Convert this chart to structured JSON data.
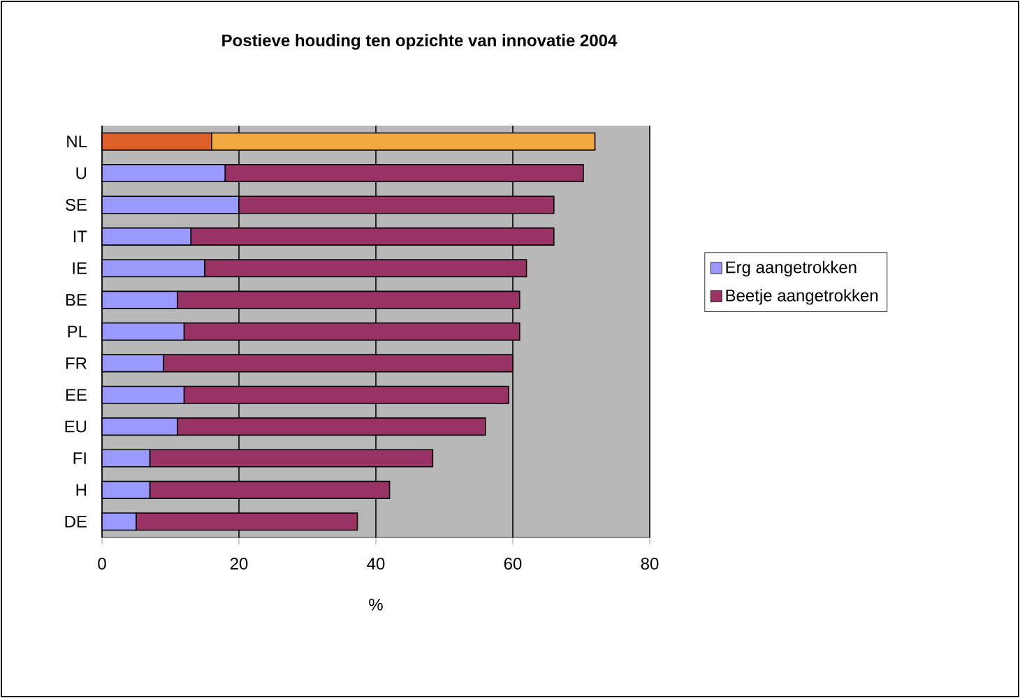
{
  "chart_data": {
    "type": "bar",
    "orientation": "horizontal",
    "stacked": true,
    "title": "Postieve houding ten opzichte van innovatie 2004",
    "xlabel": "%",
    "categories": [
      "NL",
      "U",
      "SE",
      "IT",
      "IE",
      "BE",
      "PL",
      "FR",
      "EE",
      "EU",
      "FI",
      "H",
      "DE"
    ],
    "series": [
      {
        "name": "Erg aangetrokken",
        "color": "#9999ff",
        "colors": [
          "#e0602a",
          "#9999ff",
          "#9999ff",
          "#9999ff",
          "#9999ff",
          "#9999ff",
          "#9999ff",
          "#9999ff",
          "#9999ff",
          "#9999ff",
          "#9999ff",
          "#9999ff",
          "#9999ff"
        ],
        "values": [
          16,
          18,
          20,
          13,
          15,
          11,
          12,
          9,
          12,
          11,
          7,
          7,
          5
        ]
      },
      {
        "name": "Beetje aangetrokken",
        "color": "#993366",
        "colors": [
          "#f4a840",
          "#993366",
          "#993366",
          "#993366",
          "#993366",
          "#993366",
          "#993366",
          "#993366",
          "#993366",
          "#993366",
          "#993366",
          "#993366",
          "#993366"
        ],
        "values": [
          56,
          52.3,
          46,
          53,
          47,
          50,
          49,
          51,
          47.4,
          45,
          41.3,
          35,
          32.3
        ]
      }
    ],
    "xlim": [
      0,
      80
    ],
    "xticks": [
      0,
      20,
      40,
      60,
      80
    ],
    "grid": "x",
    "legend": "right"
  }
}
